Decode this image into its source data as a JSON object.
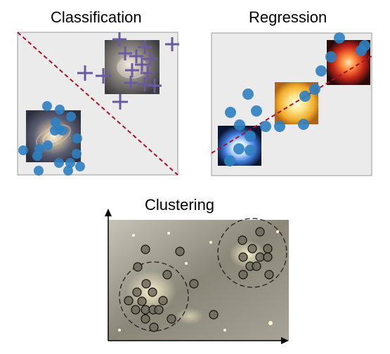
{
  "panels": {
    "classification": {
      "title": "Classification"
    },
    "regression": {
      "title": "Regression"
    },
    "clustering": {
      "title": "Clustering"
    }
  },
  "colors": {
    "panel_background": "#ebebeb",
    "panel_border": "#9a9a9a",
    "point_blue": "#2f7fc1",
    "cross_purple": "#6a5a9e",
    "boundary_red": "#a8122d",
    "cluster_point": "#6f6a5a",
    "cluster_ring": "#222222",
    "axis": "#000000"
  },
  "icons": {
    "spiral_galaxy": "spiral-galaxy-image",
    "elliptical_galaxy": "elliptical-galaxy-image",
    "blue_star": "blue-star-image",
    "yellow_star": "yellow-star-image",
    "red_star": "red-star-image",
    "galaxy_cluster": "galaxy-cluster-image"
  }
}
